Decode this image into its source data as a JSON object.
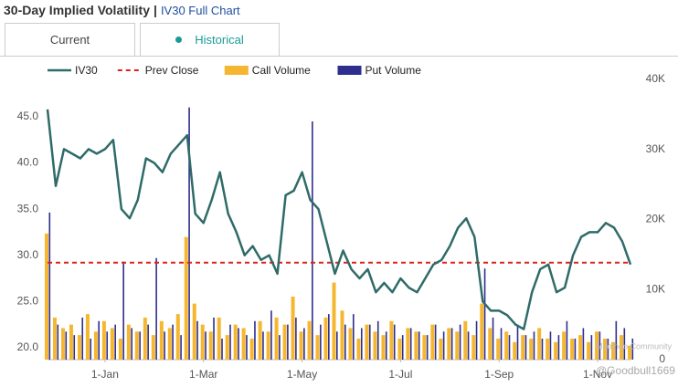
{
  "header": {
    "title": "30-Day Implied Volatility",
    "separator": "|",
    "link": "IV30 Full Chart"
  },
  "tabs": [
    "Current",
    "Historical"
  ],
  "watermark": [
    "Moomoo Community",
    "@Goodbull1669"
  ],
  "chart_data": {
    "type": "line",
    "categories": [
      null,
      null,
      null,
      null,
      null,
      null,
      null,
      "1-Jan",
      null,
      null,
      null,
      null,
      null,
      null,
      null,
      null,
      null,
      null,
      null,
      "1-Mar",
      null,
      null,
      null,
      null,
      null,
      null,
      null,
      null,
      null,
      null,
      null,
      "1-May",
      null,
      null,
      null,
      null,
      null,
      null,
      null,
      null,
      null,
      null,
      null,
      "1-Jul",
      null,
      null,
      null,
      null,
      null,
      null,
      null,
      null,
      null,
      null,
      null,
      "1-Sep",
      null,
      null,
      null,
      null,
      null,
      null,
      null,
      null,
      null,
      null,
      null,
      "1-Nov",
      null,
      null,
      null,
      null
    ],
    "series": [
      {
        "name": "IV30",
        "color": "#2f6b68",
        "axis": "y",
        "values": [
          45.8,
          37.5,
          41.5,
          41.0,
          40.5,
          41.5,
          41.0,
          41.5,
          42.5,
          35.0,
          34.0,
          36.0,
          40.5,
          40.0,
          39.0,
          41.0,
          42.0,
          43.0,
          34.5,
          33.5,
          36.0,
          39.0,
          34.5,
          32.5,
          30.0,
          31.0,
          29.5,
          30.0,
          28.0,
          36.5,
          37.0,
          39.0,
          36.0,
          35.0,
          31.5,
          28.0,
          30.5,
          28.5,
          27.5,
          28.5,
          26.0,
          27.0,
          26.0,
          27.5,
          26.5,
          26.0,
          27.5,
          29.0,
          29.5,
          31.0,
          33.0,
          34.0,
          32.0,
          25.0,
          24.0,
          24.0,
          23.5,
          22.5,
          22.0,
          26.0,
          28.5,
          29.0,
          26.0,
          26.5,
          30.0,
          32.0,
          32.5,
          32.5,
          33.5,
          33.0,
          31.5,
          29.0
        ]
      },
      {
        "name": "Call Volume",
        "color": "#f5b730",
        "axis": "y2",
        "values": [
          18000,
          6000,
          4500,
          5000,
          3500,
          6500,
          4000,
          5500,
          4500,
          3000,
          5000,
          4000,
          6000,
          3500,
          5500,
          4500,
          6500,
          17500,
          8000,
          5000,
          4000,
          6000,
          3500,
          5000,
          4500,
          3000,
          5500,
          4000,
          6000,
          5000,
          9000,
          4000,
          5500,
          3500,
          6000,
          11000,
          7000,
          4500,
          3000,
          5000,
          4000,
          3500,
          5500,
          3000,
          4500,
          4000,
          3500,
          5000,
          3000,
          4500,
          4000,
          5500,
          3500,
          8000,
          4500,
          3000,
          4000,
          2500,
          3500,
          3000,
          4500,
          3000,
          2500,
          4000,
          3000,
          3500,
          2500,
          4000,
          3000,
          2500,
          3500,
          2000
        ]
      },
      {
        "name": "Put Volume",
        "color": "#2e2e8f",
        "axis": "y2",
        "values": [
          21000,
          5000,
          4000,
          3500,
          6000,
          3000,
          5500,
          4000,
          5000,
          14000,
          4500,
          4000,
          5000,
          14500,
          4000,
          5000,
          3500,
          36000,
          5500,
          4000,
          6000,
          3000,
          5000,
          4500,
          3500,
          5500,
          4000,
          7000,
          3500,
          5000,
          6000,
          4500,
          34000,
          5000,
          6500,
          4000,
          5000,
          6500,
          4500,
          5000,
          5500,
          4000,
          5000,
          3500,
          4500,
          4000,
          3500,
          5000,
          4000,
          4500,
          5000,
          4000,
          5500,
          13000,
          6000,
          4500,
          3500,
          5000,
          3500,
          4000,
          3000,
          4000,
          3500,
          5500,
          3000,
          4500,
          3500,
          4000,
          3000,
          5500,
          4500,
          3000
        ]
      }
    ],
    "reference_line": {
      "name": "Prev Close",
      "color": "#e0201b",
      "value": 29.2
    },
    "ylim": [
      18.7,
      49.05
    ],
    "yticks": [
      {
        "value": 20,
        "label": "20.0"
      },
      {
        "value": 25,
        "label": "25.0"
      },
      {
        "value": 30,
        "label": "30.0"
      },
      {
        "value": 35,
        "label": "35.0"
      },
      {
        "value": 40,
        "label": "40.0"
      },
      {
        "value": 45,
        "label": "45.0"
      }
    ],
    "y2lim": [
      0,
      40000
    ],
    "y2ticks": [
      0,
      {
        "value": 10000,
        "label": "10K"
      },
      {
        "value": 20000,
        "label": "20K"
      },
      {
        "value": 30000,
        "label": "30K"
      },
      {
        "value": 40000,
        "label": "40K"
      }
    ],
    "grid": false
  }
}
